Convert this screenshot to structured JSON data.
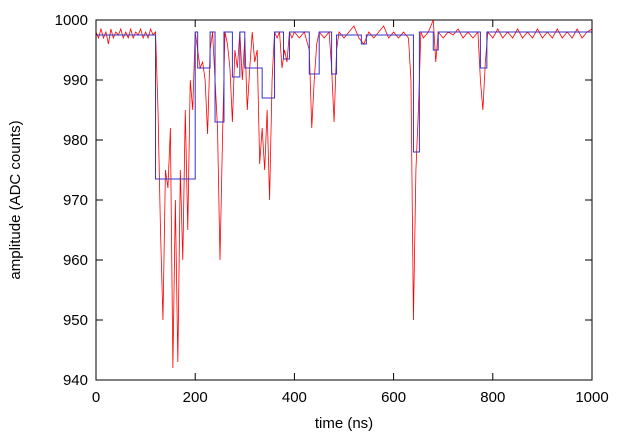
{
  "chart_data": {
    "type": "line",
    "xlabel": "time (ns)",
    "ylabel": "amplitude (ADC counts)",
    "xlim": [
      0,
      1000
    ],
    "xticks": [
      0,
      200,
      400,
      600,
      800,
      1000
    ],
    "ylim": [
      940,
      1000
    ],
    "yticks": [
      940,
      950,
      960,
      970,
      980,
      990,
      1000
    ],
    "series": [
      {
        "color": "#ff0000",
        "x": [
          0,
          5,
          10,
          15,
          20,
          25,
          30,
          35,
          40,
          45,
          50,
          55,
          60,
          65,
          70,
          75,
          80,
          85,
          90,
          95,
          100,
          105,
          110,
          115,
          120,
          125,
          130,
          135,
          140,
          145,
          150,
          155,
          160,
          165,
          170,
          175,
          180,
          185,
          190,
          195,
          200,
          205,
          210,
          215,
          220,
          225,
          230,
          235,
          240,
          245,
          250,
          255,
          260,
          265,
          270,
          275,
          280,
          285,
          290,
          295,
          300,
          305,
          310,
          315,
          320,
          325,
          330,
          335,
          340,
          345,
          350,
          355,
          360,
          365,
          370,
          375,
          380,
          385,
          390,
          395,
          400,
          410,
          420,
          430,
          435,
          440,
          445,
          450,
          460,
          470,
          475,
          480,
          485,
          490,
          500,
          510,
          520,
          530,
          540,
          550,
          560,
          570,
          580,
          590,
          600,
          610,
          620,
          630,
          635,
          640,
          645,
          650,
          655,
          660,
          670,
          680,
          685,
          690,
          700,
          710,
          720,
          730,
          740,
          750,
          760,
          770,
          775,
          780,
          785,
          790,
          800,
          810,
          820,
          830,
          840,
          850,
          860,
          870,
          880,
          890,
          900,
          910,
          920,
          930,
          940,
          950,
          960,
          970,
          980,
          990,
          1000
        ],
        "values": [
          998,
          997,
          998.5,
          997,
          998,
          996,
          998.5,
          997,
          998,
          997.5,
          998.5,
          997,
          998,
          997,
          998.5,
          997,
          998,
          997.5,
          998.5,
          997,
          998,
          997,
          998.5,
          997.5,
          998,
          985,
          965,
          950,
          975,
          972,
          982,
          942,
          970,
          943,
          975,
          960,
          985,
          965,
          990,
          985,
          998,
          995,
          992,
          993,
          990,
          981,
          995,
          998,
          990,
          982,
          960,
          980,
          998,
          996,
          992,
          983,
          995,
          992,
          998,
          990,
          997,
          985,
          992,
          998,
          993,
          995,
          976,
          982,
          975,
          985,
          970,
          990,
          998,
          997,
          998,
          992,
          995,
          993,
          998,
          997,
          998,
          997,
          998,
          995,
          982,
          990,
          996,
          998,
          997,
          998,
          992,
          983,
          995,
          998,
          997,
          998,
          999,
          997,
          996,
          998,
          997,
          998,
          999,
          997,
          998,
          997,
          998,
          997,
          990,
          950,
          975,
          985,
          998,
          997,
          998,
          1000,
          993,
          998,
          997,
          998,
          997.5,
          998.5,
          997,
          998,
          997,
          998,
          990,
          985,
          993,
          998,
          997,
          998.5,
          997,
          998,
          997,
          998.5,
          997,
          998,
          997,
          998.5,
          997,
          998,
          997,
          998.5,
          997,
          998,
          997,
          998.5,
          997,
          998,
          998.5
        ]
      },
      {
        "color": "#3333cc",
        "x": [
          0,
          120,
          120,
          200,
          200,
          205,
          205,
          230,
          230,
          240,
          240,
          258,
          258,
          275,
          275,
          290,
          290,
          300,
          300,
          335,
          335,
          360,
          360,
          378,
          378,
          390,
          390,
          430,
          430,
          450,
          450,
          475,
          475,
          485,
          485,
          535,
          535,
          545,
          545,
          640,
          640,
          652,
          652,
          680,
          680,
          690,
          690,
          775,
          775,
          788,
          788,
          1000
        ],
        "values": [
          997.5,
          997.5,
          973.5,
          973.5,
          998,
          998,
          992,
          992,
          998,
          998,
          983,
          983,
          998,
          998,
          990.5,
          990.5,
          998,
          998,
          992,
          992,
          987,
          987,
          998,
          998,
          993.5,
          993.5,
          998,
          998,
          991,
          991,
          998,
          998,
          991,
          991,
          997.5,
          997.5,
          996,
          996,
          997.5,
          997.5,
          978,
          978,
          998,
          998,
          995,
          995,
          998,
          998,
          992,
          992,
          998,
          998
        ]
      }
    ]
  }
}
